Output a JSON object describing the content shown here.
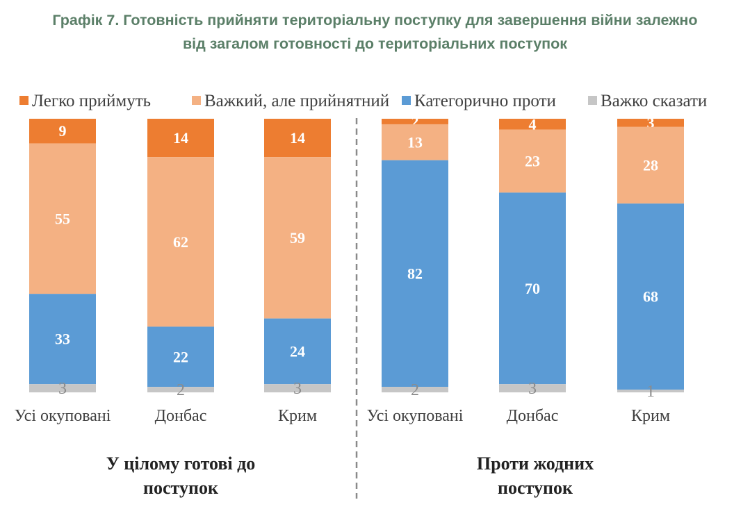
{
  "title": {
    "line1": "Графік 7. Готовність прийняти територіальну поступку для завершення війни залежно",
    "line2": "від загалом готовності до територіальних поступок"
  },
  "colors": {
    "easy": "#ed7d31",
    "hard": "#f4b183",
    "against": "#5b9bd5",
    "unsure": "#c6c6c6",
    "label_light": "#ffffff",
    "label_unsure": "#8c8c8c",
    "axis_text": "#404040",
    "divider": "#8a8a8a"
  },
  "chart_data": {
    "type": "bar",
    "stacked": true,
    "orientation": "vertical",
    "ylim": [
      0,
      100
    ],
    "grid": false,
    "legend_position": "top",
    "series": [
      {
        "name": "Легко приймуть",
        "color": "#ed7d31",
        "values": [
          9,
          14,
          14,
          2,
          4,
          3
        ]
      },
      {
        "name": "Важкий, але прийнятний",
        "color": "#f4b183",
        "values": [
          55,
          62,
          59,
          13,
          23,
          28
        ]
      },
      {
        "name": "Категорично проти",
        "color": "#5b9bd5",
        "values": [
          33,
          22,
          24,
          82,
          70,
          68
        ]
      },
      {
        "name": "Важко сказати",
        "color": "#c6c6c6",
        "values": [
          3,
          2,
          3,
          2,
          3,
          1
        ]
      }
    ],
    "categories": [
      "Усі окуповані",
      "Донбас",
      "Крим",
      "Усі окуповані",
      "Донбас",
      "Крим"
    ],
    "groups": [
      {
        "label_line1": "У цілому готові до",
        "label_line2": "поступок",
        "category_indices": [
          0,
          1,
          2
        ]
      },
      {
        "label_line1": "Проти жодних",
        "label_line2": "поступок",
        "category_indices": [
          3,
          4,
          5
        ]
      }
    ]
  }
}
